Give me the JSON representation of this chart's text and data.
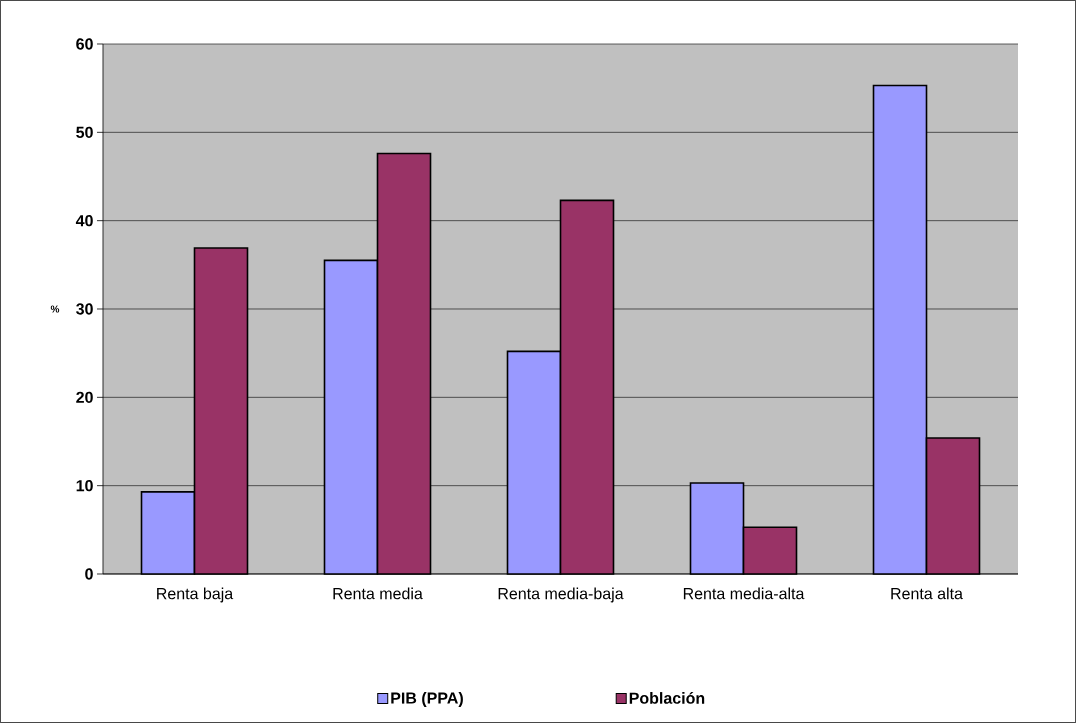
{
  "chart_data": {
    "type": "bar",
    "ylabel": "%",
    "categories": [
      "Renta baja",
      "Renta media",
      "Renta media-baja",
      "Renta media-alta",
      "Renta alta"
    ],
    "series": [
      {
        "name": "PIB (PPA)",
        "color": "#9999ff",
        "values": [
          9.3,
          35.5,
          25.2,
          10.3,
          55.3
        ]
      },
      {
        "name": "Población",
        "color": "#993366",
        "values": [
          36.9,
          47.6,
          42.3,
          5.3,
          15.4
        ]
      }
    ],
    "ylim": [
      0,
      60
    ],
    "yticks": [
      0,
      10,
      20,
      30,
      40,
      50,
      60
    ],
    "grid": "y",
    "legend": "bottom"
  }
}
